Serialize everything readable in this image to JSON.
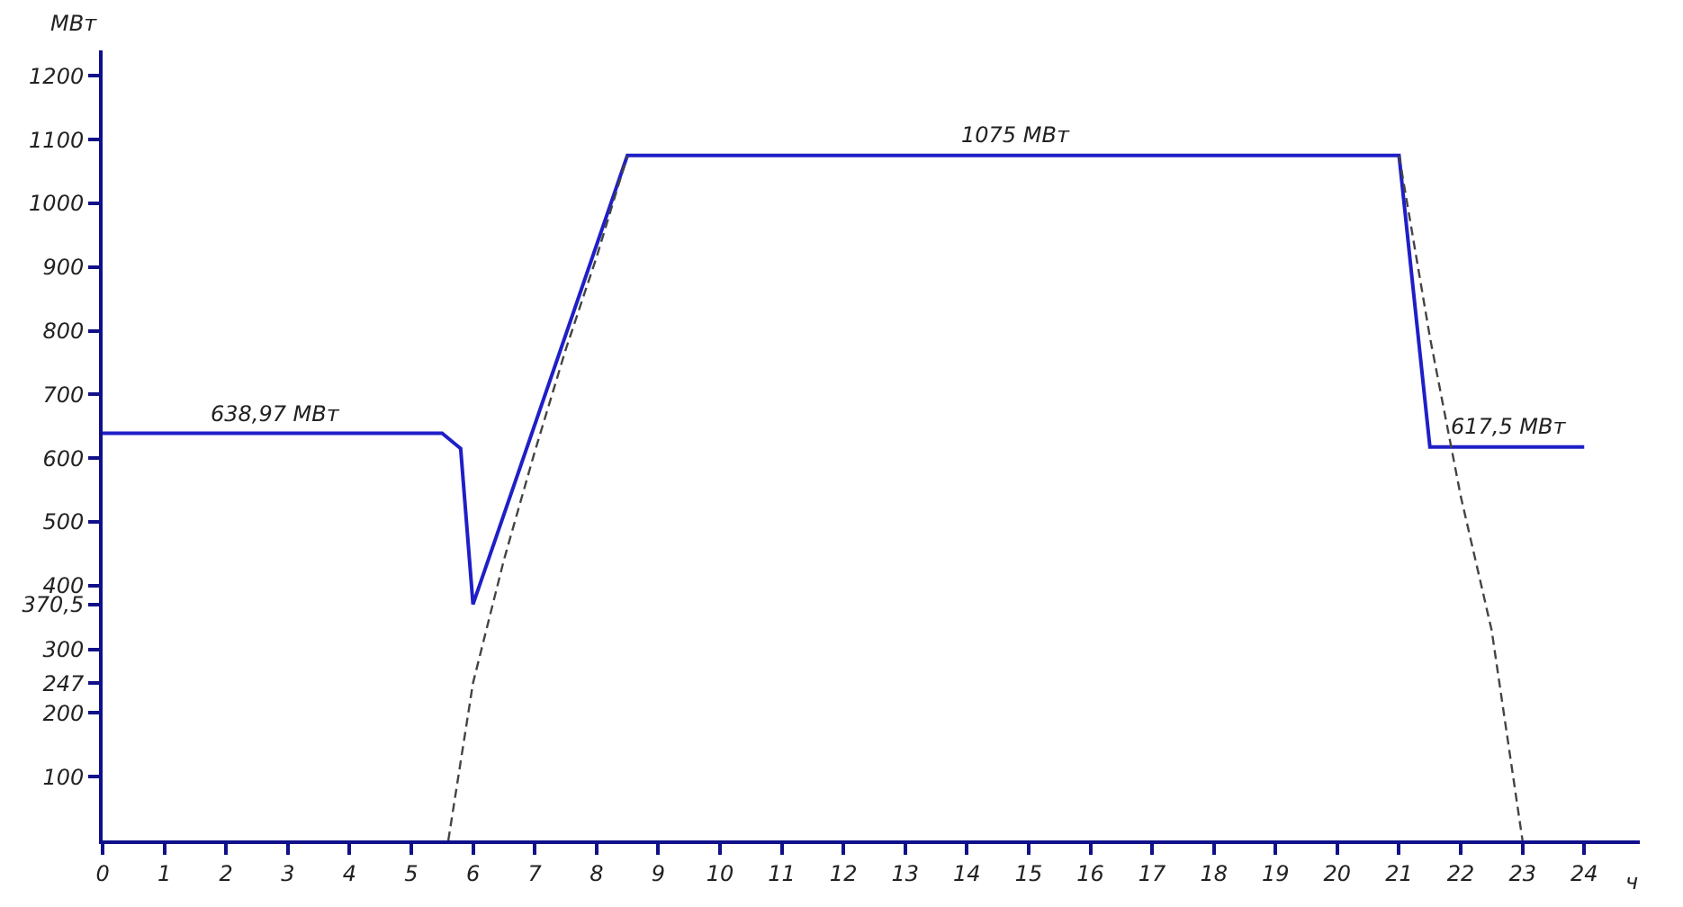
{
  "chart_data": {
    "type": "line",
    "xlabel": "ч",
    "ylabel": "МВт",
    "xlim": [
      0,
      24.9
    ],
    "ylim": [
      0,
      1240
    ],
    "xticks": [
      0,
      1,
      2,
      3,
      4,
      5,
      6,
      7,
      8,
      9,
      10,
      11,
      12,
      13,
      14,
      15,
      16,
      17,
      18,
      19,
      20,
      21,
      22,
      23,
      24
    ],
    "yticks": [
      100,
      200,
      {
        "value": 247,
        "label": "247"
      },
      300,
      {
        "value": 370.5,
        "label": "370,5"
      },
      400,
      500,
      600,
      700,
      800,
      900,
      1000,
      1100,
      1200
    ],
    "series": [
      {
        "color": "#1f1fc8",
        "line_style": "solid",
        "x": [
          0,
          5.5,
          5.8,
          6,
          8.5,
          21,
          21.5,
          24
        ],
        "values": [
          638.97,
          638.97,
          615,
          370.5,
          1075,
          1075,
          617.5,
          617.5
        ]
      },
      {
        "color": "#444444",
        "line_style": "dashed",
        "x": [
          5.6,
          6,
          6.5,
          7,
          7.5,
          8,
          8.5
        ],
        "values": [
          0,
          247,
          440,
          610,
          770,
          915,
          1075
        ]
      },
      {
        "color": "#444444",
        "line_style": "dashed",
        "x": [
          21,
          21.5,
          22,
          22.5,
          23
        ],
        "values": [
          1075,
          790,
          540,
          330,
          0
        ]
      }
    ],
    "annotations": [
      {
        "text": "638,97 МВт",
        "x": 2.8,
        "y": 638.97
      },
      {
        "text": "1075 МВт",
        "x": 14.8,
        "y": 1075
      },
      {
        "text": "617,5 МВт",
        "x": 22.8,
        "y": 617.5
      }
    ],
    "marker": "none"
  }
}
